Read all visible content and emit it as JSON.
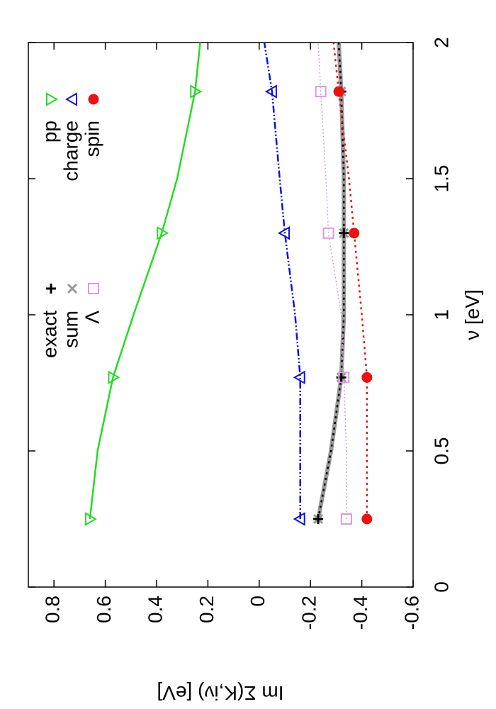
{
  "chart_data": {
    "type": "line",
    "xlabel": "ν [eV]",
    "ylabel": "Im Σ(K,iν) [eV]",
    "xlim": [
      0,
      2
    ],
    "xticks": [
      0,
      0.5,
      1,
      1.5,
      2
    ],
    "ylim": [
      -0.6,
      0.9
    ],
    "yticks": [
      -0.6,
      -0.4,
      -0.2,
      0,
      0.2,
      0.4,
      0.6,
      0.8
    ],
    "x": [
      0.25,
      0.5,
      0.77,
      1,
      1.3,
      1.5,
      1.82,
      2
    ],
    "marker_x": [
      0.25,
      0.77,
      1.3,
      1.82
    ],
    "series": [
      {
        "name": "sum",
        "color": "#999999",
        "marker": "x",
        "linestyle": "thick",
        "values": [
          -0.23,
          -0.28,
          -0.32,
          -0.33,
          -0.33,
          -0.33,
          -0.32,
          -0.31
        ],
        "marker_values": [
          -0.23,
          -0.32,
          -0.33,
          -0.32
        ]
      },
      {
        "name": "exact",
        "color": "#000000",
        "marker": "plus",
        "linestyle": "dotted",
        "values": [
          -0.23,
          -0.28,
          -0.32,
          -0.33,
          -0.33,
          -0.33,
          -0.32,
          -0.31
        ],
        "marker_values": [
          -0.23,
          -0.32,
          -0.33,
          -0.32
        ]
      },
      {
        "name": "Λ",
        "color": "#dd99dd",
        "marker": "square",
        "linestyle": "finedotted",
        "values": [
          -0.34,
          -0.34,
          -0.33,
          -0.32,
          -0.27,
          -0.26,
          -0.24,
          -0.23
        ],
        "marker_values": [
          -0.34,
          -0.33,
          -0.27,
          -0.24
        ]
      },
      {
        "name": "pp",
        "color": "#22dd22",
        "marker": "triangle-down",
        "linestyle": "solid",
        "values": [
          0.66,
          0.63,
          0.57,
          0.49,
          0.38,
          0.32,
          0.25,
          0.23
        ],
        "marker_values": [
          0.66,
          0.57,
          0.38,
          0.25
        ]
      },
      {
        "name": "charge",
        "color": "#1111dd",
        "marker": "triangle-up",
        "linestyle": "dashdotdot",
        "values": [
          -0.16,
          -0.16,
          -0.16,
          -0.14,
          -0.1,
          -0.08,
          -0.05,
          -0.02
        ],
        "marker_values": [
          -0.16,
          -0.16,
          -0.1,
          -0.05
        ]
      },
      {
        "name": "spin",
        "color": "#ee1111",
        "marker": "circle",
        "linestyle": "dotted",
        "values": [
          -0.42,
          -0.42,
          -0.42,
          -0.4,
          -0.37,
          -0.35,
          -0.31,
          -0.29
        ],
        "marker_values": [
          -0.42,
          -0.42,
          -0.37,
          -0.31
        ]
      }
    ]
  }
}
